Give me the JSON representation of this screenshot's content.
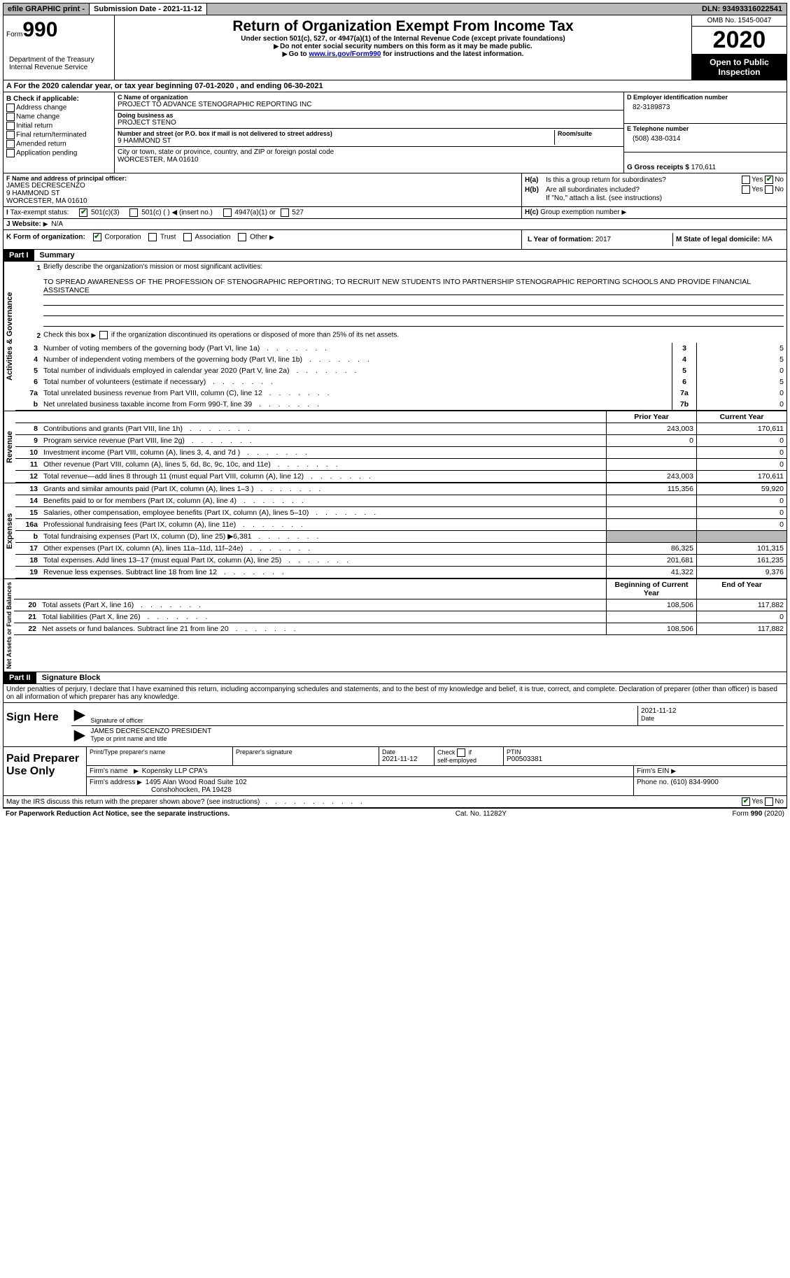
{
  "topbar": {
    "efile": "efile GRAPHIC print -",
    "submission": "Submission Date - 2021-11-12",
    "dln": "DLN: 93493316022541"
  },
  "header": {
    "form_label": "Form",
    "form_num": "990",
    "dept": "Department of the Treasury\nInternal Revenue Service",
    "title": "Return of Organization Exempt From Income Tax",
    "sub1": "Under section 501(c), 527, or 4947(a)(1) of the Internal Revenue Code (except private foundations)",
    "sub2": "Do not enter social security numbers on this form as it may be made public.",
    "sub3_pre": "Go to ",
    "sub3_link": "www.irs.gov/Form990",
    "sub3_post": " for instructions and the latest information.",
    "omb": "OMB No. 1545-0047",
    "year": "2020",
    "open": "Open to Public Inspection"
  },
  "lineA": "For the 2020 calendar year, or tax year beginning 07-01-2020   , and ending 06-30-2021",
  "sectionB": {
    "header": "B Check if applicable:",
    "items": [
      "Address change",
      "Name change",
      "Initial return",
      "Final return/terminated",
      "Amended return",
      "Application pending"
    ]
  },
  "sectionC": {
    "name_lbl": "C Name of organization",
    "name": "PROJECT TO ADVANCE STENOGRAPHIC REPORTING INC",
    "dba_lbl": "Doing business as",
    "dba": "PROJECT STENO",
    "addr_lbl": "Number and street (or P.O. box if mail is not delivered to street address)",
    "room_lbl": "Room/suite",
    "addr": "9 HAMMOND ST",
    "city_lbl": "City or town, state or province, country, and ZIP or foreign postal code",
    "city": "WORCESTER, MA  01610"
  },
  "sectionD": {
    "lbl": "D Employer identification number",
    "val": "82-3189873"
  },
  "sectionE": {
    "lbl": "E Telephone number",
    "val": "(508) 438-0314"
  },
  "sectionG": {
    "lbl": "G Gross receipts $",
    "val": "170,611"
  },
  "sectionF": {
    "lbl": "F Name and address of principal officer:",
    "name": "JAMES DECRESCENZO",
    "addr1": "9 HAMMOND ST",
    "addr2": "WORCESTER, MA  01610"
  },
  "sectionH": {
    "a_q": "Is this a group return for subordinates?",
    "b_q": "Are all subordinates included?",
    "b_note": "If \"No,\" attach a list. (see instructions)",
    "c_lbl": "Group exemption number"
  },
  "sectionI": {
    "lbl": "Tax-exempt status:",
    "opts": [
      "501(c)(3)",
      "501(c) ( )",
      "(insert no.)",
      "4947(a)(1) or",
      "527"
    ]
  },
  "sectionJ": {
    "lbl": "Website:",
    "val": "N/A"
  },
  "sectionK": {
    "lbl": "K Form of organization:",
    "opts": [
      "Corporation",
      "Trust",
      "Association",
      "Other"
    ]
  },
  "sectionL": {
    "lbl": "L Year of formation:",
    "val": "2017"
  },
  "sectionM": {
    "lbl": "M State of legal domicile:",
    "val": "MA"
  },
  "partI": {
    "num": "Part I",
    "title": "Summary"
  },
  "summary": {
    "q1": "Briefly describe the organization's mission or most significant activities:",
    "mission": "TO SPREAD AWARENESS OF THE PROFESSION OF STENOGRAPHIC REPORTING; TO RECRUIT NEW STUDENTS INTO PARTNERSHIP STENOGRAPHIC REPORTING SCHOOLS AND PROVIDE FINANCIAL ASSISTANCE",
    "q2": "Check this box        if the organization discontinued its operations or disposed of more than 25% of its net assets.",
    "sideA": "Activities & Governance",
    "sideR": "Revenue",
    "sideE": "Expenses",
    "sideN": "Net Assets or Fund Balances",
    "col_prior": "Prior Year",
    "col_current": "Current Year",
    "col_begin": "Beginning of Current Year",
    "col_end": "End of Year",
    "rows_ag": [
      {
        "n": "3",
        "d": "Number of voting members of the governing body (Part VI, line 1a)",
        "box": "3",
        "v": "5"
      },
      {
        "n": "4",
        "d": "Number of independent voting members of the governing body (Part VI, line 1b)",
        "box": "4",
        "v": "5"
      },
      {
        "n": "5",
        "d": "Total number of individuals employed in calendar year 2020 (Part V, line 2a)",
        "box": "5",
        "v": "0"
      },
      {
        "n": "6",
        "d": "Total number of volunteers (estimate if necessary)",
        "box": "6",
        "v": "5"
      },
      {
        "n": "7a",
        "d": "Total unrelated business revenue from Part VIII, column (C), line 12",
        "box": "7a",
        "v": "0"
      },
      {
        "n": "b",
        "d": "Net unrelated business taxable income from Form 990-T, line 39",
        "box": "7b",
        "v": "0"
      }
    ],
    "rows_rev": [
      {
        "n": "8",
        "d": "Contributions and grants (Part VIII, line 1h)",
        "p": "243,003",
        "c": "170,611"
      },
      {
        "n": "9",
        "d": "Program service revenue (Part VIII, line 2g)",
        "p": "0",
        "c": "0"
      },
      {
        "n": "10",
        "d": "Investment income (Part VIII, column (A), lines 3, 4, and 7d )",
        "p": "",
        "c": "0"
      },
      {
        "n": "11",
        "d": "Other revenue (Part VIII, column (A), lines 5, 6d, 8c, 9c, 10c, and 11e)",
        "p": "",
        "c": "0"
      },
      {
        "n": "12",
        "d": "Total revenue—add lines 8 through 11 (must equal Part VIII, column (A), line 12)",
        "p": "243,003",
        "c": "170,611"
      }
    ],
    "rows_exp": [
      {
        "n": "13",
        "d": "Grants and similar amounts paid (Part IX, column (A), lines 1–3 )",
        "p": "115,356",
        "c": "59,920"
      },
      {
        "n": "14",
        "d": "Benefits paid to or for members (Part IX, column (A), line 4)",
        "p": "",
        "c": "0"
      },
      {
        "n": "15",
        "d": "Salaries, other compensation, employee benefits (Part IX, column (A), lines 5–10)",
        "p": "",
        "c": "0"
      },
      {
        "n": "16a",
        "d": "Professional fundraising fees (Part IX, column (A), line 11e)",
        "p": "",
        "c": "0",
        "shadeP": false
      },
      {
        "n": "b",
        "d": "Total fundraising expenses (Part IX, column (D), line 25)  ▶6,381",
        "p": "",
        "c": "",
        "shadeP": true,
        "shadeC": true
      },
      {
        "n": "17",
        "d": "Other expenses (Part IX, column (A), lines 11a–11d, 11f–24e)",
        "p": "86,325",
        "c": "101,315"
      },
      {
        "n": "18",
        "d": "Total expenses. Add lines 13–17 (must equal Part IX, column (A), line 25)",
        "p": "201,681",
        "c": "161,235"
      },
      {
        "n": "19",
        "d": "Revenue less expenses. Subtract line 18 from line 12",
        "p": "41,322",
        "c": "9,376"
      }
    ],
    "rows_net": [
      {
        "n": "20",
        "d": "Total assets (Part X, line 16)",
        "p": "108,506",
        "c": "117,882"
      },
      {
        "n": "21",
        "d": "Total liabilities (Part X, line 26)",
        "p": "",
        "c": "0"
      },
      {
        "n": "22",
        "d": "Net assets or fund balances. Subtract line 21 from line 20",
        "p": "108,506",
        "c": "117,882"
      }
    ]
  },
  "partII": {
    "num": "Part II",
    "title": "Signature Block"
  },
  "sig": {
    "decl": "Under penalties of perjury, I declare that I have examined this return, including accompanying schedules and statements, and to the best of my knowledge and belief, it is true, correct, and complete. Declaration of preparer (other than officer) is based on all information of which preparer has any knowledge.",
    "sign_here": "Sign Here",
    "sig_officer": "Signature of officer",
    "date": "Date",
    "date_val": "2021-11-12",
    "name_line": "JAMES DECRESCENZO  PRESIDENT",
    "name_lbl": "Type or print name and title"
  },
  "preparer": {
    "title": "Paid Preparer Use Only",
    "h1": "Print/Type preparer's name",
    "h2": "Preparer's signature",
    "h3": "Date",
    "h3v": "2021-11-12",
    "h4": "Check        if self-employed",
    "h5": "PTIN",
    "h5v": "P00503381",
    "firm_lbl": "Firm's name",
    "firm": "Kopensky LLP CPA's",
    "ein_lbl": "Firm's EIN",
    "addr_lbl": "Firm's address",
    "addr1": "1495 Alan Wood Road Suite 102",
    "addr2": "Conshohocken, PA  19428",
    "phone_lbl": "Phone no.",
    "phone": "(610) 834-9900"
  },
  "footer": {
    "q": "May the IRS discuss this return with the preparer shown above? (see instructions)",
    "yes": "Yes",
    "no": "No",
    "pra": "For Paperwork Reduction Act Notice, see the separate instructions.",
    "cat": "Cat. No. 11282Y",
    "form": "Form 990 (2020)"
  }
}
